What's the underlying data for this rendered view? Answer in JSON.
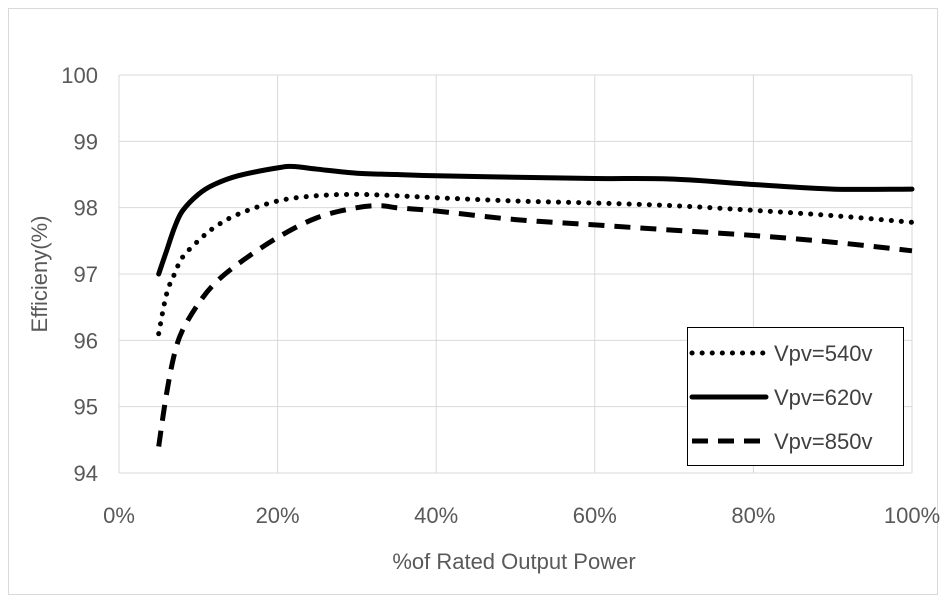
{
  "chart_data": {
    "type": "line",
    "title": "",
    "xlabel": "%of Rated Output Power",
    "ylabel": "Efficieny(%)",
    "xlim": [
      0,
      100
    ],
    "ylim": [
      94,
      100
    ],
    "x_ticks": [
      0,
      20,
      40,
      60,
      80,
      100
    ],
    "x_tick_labels": [
      "0%",
      "20%",
      "40%",
      "60%",
      "80%",
      "100%"
    ],
    "y_ticks": [
      94,
      95,
      96,
      97,
      98,
      99,
      100
    ],
    "y_tick_labels": [
      "94",
      "95",
      "96",
      "97",
      "98",
      "99",
      "100"
    ],
    "grid": true,
    "legend_position": "bottom-right",
    "series": [
      {
        "name": "Vpv=540v",
        "style": "dotted",
        "x": [
          5,
          6,
          7,
          8,
          10,
          12,
          15,
          20,
          25,
          30,
          35,
          40,
          50,
          60,
          70,
          80,
          90,
          100
        ],
        "y": [
          96.1,
          96.7,
          97.0,
          97.25,
          97.5,
          97.7,
          97.9,
          98.1,
          98.18,
          98.2,
          98.18,
          98.15,
          98.1,
          98.07,
          98.03,
          97.96,
          97.88,
          97.78
        ]
      },
      {
        "name": "Vpv=620v",
        "style": "solid",
        "x": [
          5,
          6,
          7,
          8,
          10,
          12,
          15,
          20,
          22,
          25,
          30,
          35,
          40,
          50,
          60,
          70,
          80,
          90,
          100
        ],
        "y": [
          97.0,
          97.35,
          97.7,
          97.95,
          98.2,
          98.35,
          98.48,
          98.6,
          98.62,
          98.58,
          98.52,
          98.5,
          98.48,
          98.46,
          98.44,
          98.43,
          98.35,
          98.28,
          98.28
        ]
      },
      {
        "name": "Vpv=850v",
        "style": "dashed",
        "x": [
          5,
          6,
          7,
          8,
          10,
          12,
          15,
          20,
          25,
          30,
          33,
          35,
          40,
          50,
          60,
          70,
          80,
          90,
          100
        ],
        "y": [
          94.4,
          95.2,
          95.8,
          96.15,
          96.55,
          96.85,
          97.15,
          97.55,
          97.85,
          98.0,
          98.03,
          98.0,
          97.95,
          97.82,
          97.74,
          97.66,
          97.58,
          97.48,
          97.35
        ]
      }
    ]
  },
  "colors": {
    "line": "#000000",
    "grid": "#d9d9d9",
    "text": "#595959",
    "border": "#d9d9d9"
  }
}
